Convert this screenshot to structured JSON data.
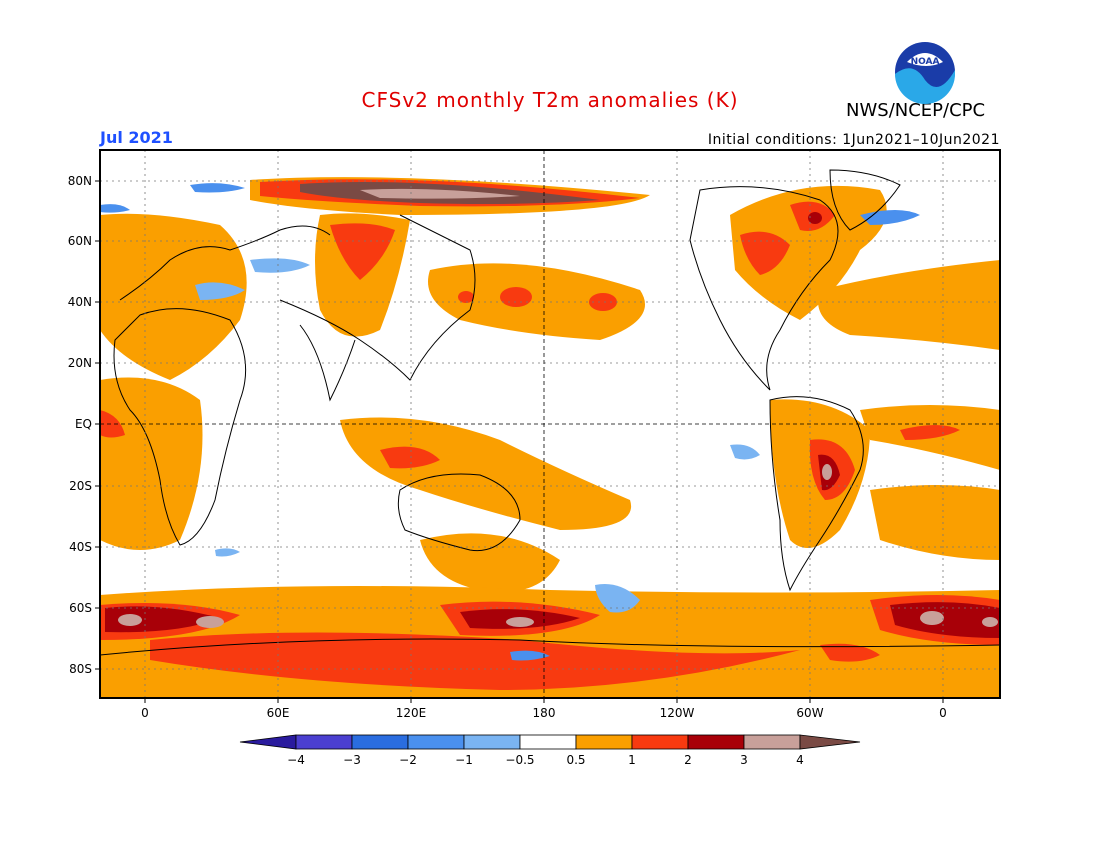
{
  "title": "CFSv2 monthly T2m anomalies (K)",
  "month_label": "Jul 2021",
  "initial_conditions": "Initial conditions: 1Jun2021–10Jun2021",
  "agency": "NWS/NCEP/CPC",
  "logo_text": "NOAA",
  "lat_labels": [
    "80N",
    "60N",
    "40N",
    "20N",
    "EQ",
    "20S",
    "40S",
    "60S",
    "80S"
  ],
  "lon_labels": [
    "0",
    "60E",
    "120E",
    "180",
    "120W",
    "60W",
    "0"
  ],
  "colorbar": {
    "labels": [
      "−4",
      "−3",
      "−2",
      "−1",
      "−0.5",
      "0.5",
      "1",
      "2",
      "3",
      "4"
    ],
    "colors": [
      "#2a1b9e",
      "#4b3fd0",
      "#2a6de0",
      "#4a90ee",
      "#7ab4f2",
      "#ffffff",
      "#fa9f00",
      "#f83a10",
      "#a80008",
      "#c8a09a",
      "#7a4a44"
    ]
  },
  "map_colors": {
    "warm1": "#fa9f00",
    "warm2": "#f83a10",
    "warm3": "#a80008",
    "warm4": "#c8a09a",
    "warm5": "#7a4a44",
    "cool1": "#7ab4f2",
    "cool2": "#4a90ee"
  }
}
